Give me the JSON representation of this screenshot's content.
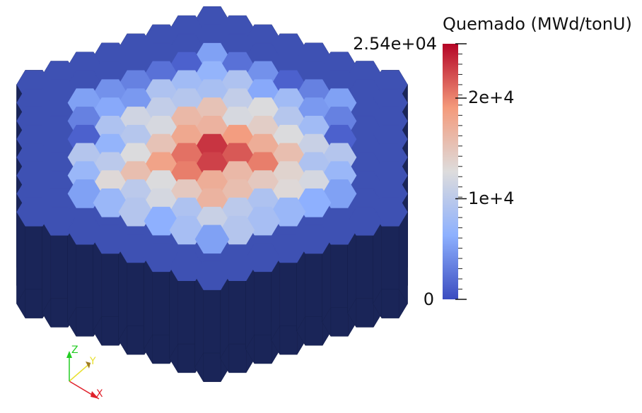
{
  "colorbar": {
    "title": "Quemado (MWd/tonU)",
    "max_label": "2.54e+04",
    "min_label": "0",
    "range": [
      0,
      25400
    ],
    "ticks": [
      {
        "label": "2e+4",
        "value": 20000
      },
      {
        "label": "1e+4",
        "value": 10000
      }
    ],
    "colormap": [
      "#3b4cc0",
      "#8db0fe",
      "#dddcdc",
      "#f49a7b",
      "#b40426"
    ]
  },
  "axes_triad": {
    "x_label": "X",
    "y_label": "Y",
    "z_label": "Z",
    "x_color": "#e0202a",
    "y_color": "#e8e030",
    "z_color": "#22cc22"
  },
  "colors": {
    "background": "#ffffff",
    "outer_ring": "#3e51b3",
    "side_wall": "#1a2558"
  }
}
